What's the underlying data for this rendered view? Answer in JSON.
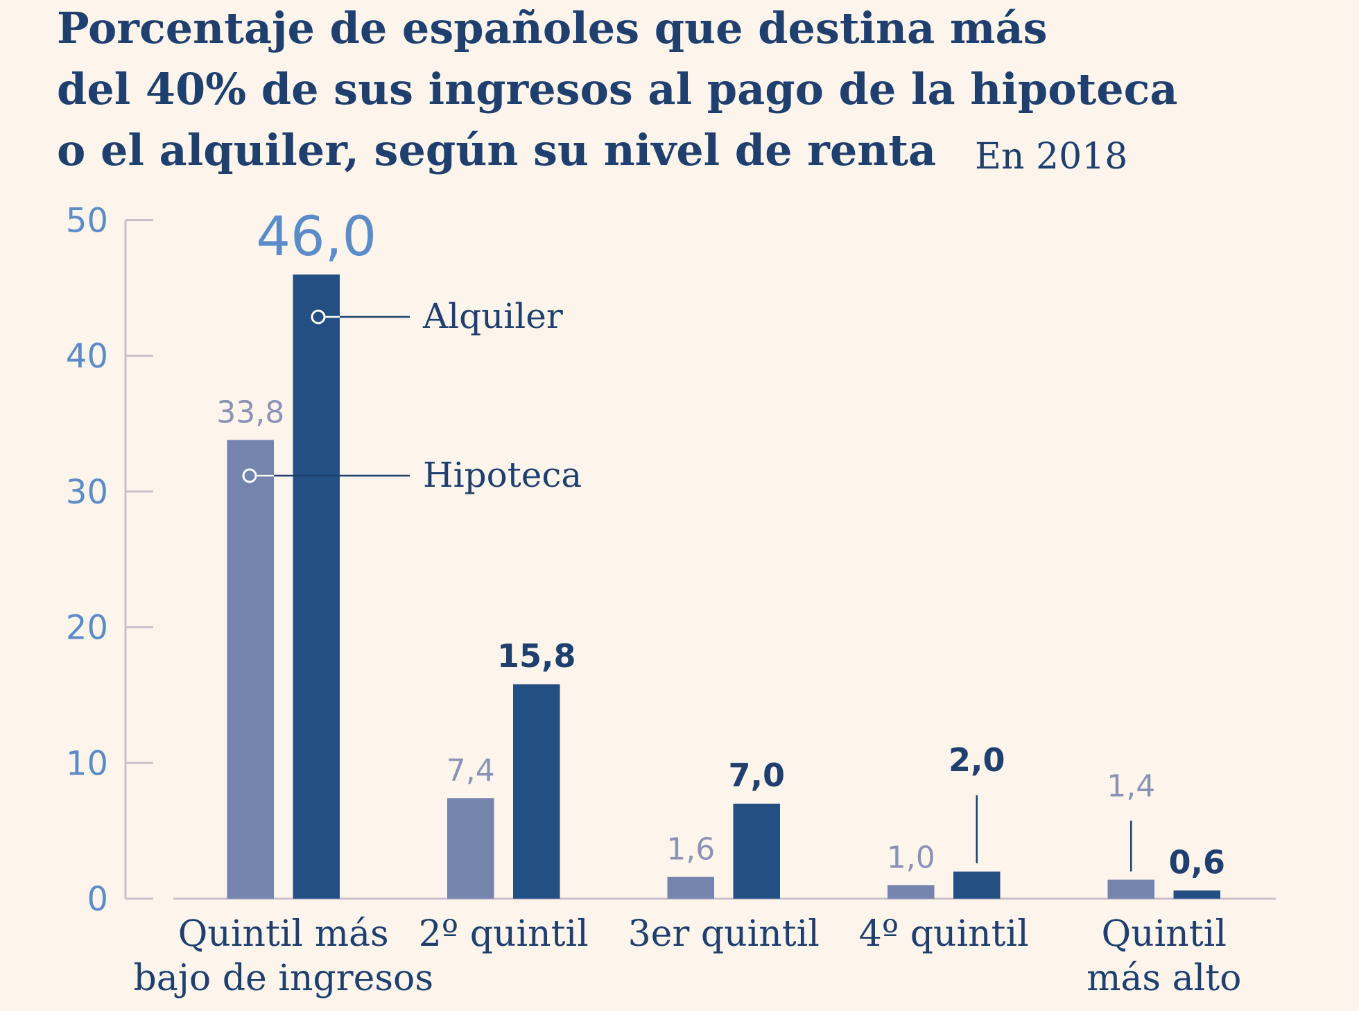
{
  "chart_data": {
    "type": "bar",
    "title": [
      "Porcentaje de españoles que destina más",
      "del 40% de sus ingresos al pago de la hipoteca",
      "o el alquiler, según su nivel de renta"
    ],
    "subtitle": "En 2018",
    "categories": [
      [
        "Quintil  más",
        "bajo de ingresos"
      ],
      [
        "2º quintil"
      ],
      [
        "3er quintil"
      ],
      [
        "4º quintil"
      ],
      [
        "Quintil",
        "más alto"
      ]
    ],
    "series": [
      {
        "name": "Hipoteca",
        "color": "#7484ad",
        "values": [
          33.8,
          7.4,
          1.6,
          1.0,
          1.4
        ],
        "value_labels": [
          "33,8",
          "7,4",
          "1,6",
          "1,0",
          "1,4"
        ]
      },
      {
        "name": "Alquiler",
        "color": "#234f82",
        "values": [
          46.0,
          15.8,
          7.0,
          2.0,
          0.6
        ],
        "value_labels": [
          "46,0",
          "15,8",
          "7,0",
          "2,0",
          "0,6"
        ]
      }
    ],
    "ylim": [
      0,
      50
    ],
    "yticks": [
      0,
      10,
      20,
      30,
      40,
      50
    ]
  }
}
